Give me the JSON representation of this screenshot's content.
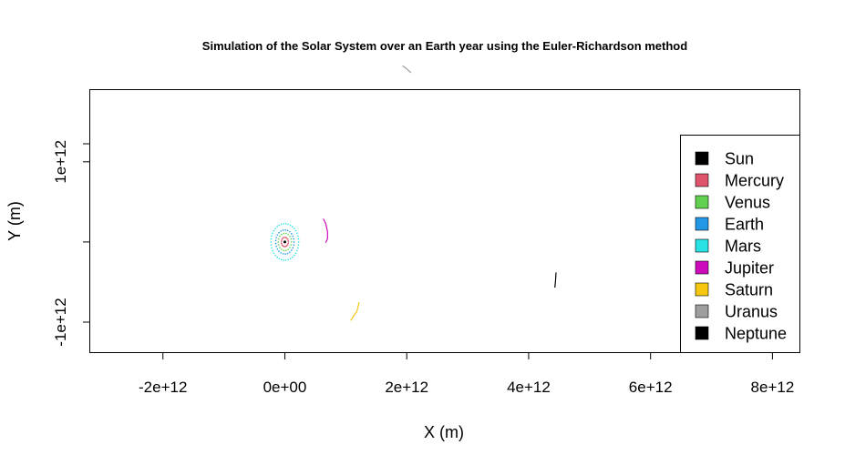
{
  "chart_data": {
    "type": "scatter",
    "title": "Simulation of the Solar System over an Earth year using the Euler-Richardson method",
    "xlabel": "X (m)",
    "ylabel": "Y (m)",
    "xlim": [
      -3200000000000.0,
      8450000000000.0
    ],
    "ylim": [
      -1380000000000.0,
      1900000000000.0
    ],
    "x_ticks": [
      -2000000000000.0,
      0,
      2000000000000.0,
      4000000000000.0,
      6000000000000.0,
      8000000000000.0
    ],
    "x_tick_labels": [
      "-2e+12",
      "0e+00",
      "2e+12",
      "4e+12",
      "6e+12",
      "8e+12"
    ],
    "y_ticks": [
      -1000000000000.0,
      0,
      1000000000000.0
    ],
    "y_tick_labels": [
      "-1e+12",
      "",
      "1e+12"
    ],
    "legend_placement": "right",
    "grid": false,
    "series": [
      {
        "name": "Sun",
        "color": "#000000",
        "kind": "point",
        "x": [
          0
        ],
        "y": [
          0
        ]
      },
      {
        "name": "Mercury",
        "color": "#DF536B",
        "kind": "orbit",
        "cx": 0,
        "cy": 0,
        "radius": 58000000000.0,
        "from_deg": 0,
        "to_deg": 360
      },
      {
        "name": "Venus",
        "color": "#61D04F",
        "kind": "orbit",
        "cx": 0,
        "cy": 0,
        "radius": 108000000000.0,
        "from_deg": 0,
        "to_deg": 360
      },
      {
        "name": "Earth",
        "color": "#2297E6",
        "kind": "orbit",
        "cx": 0,
        "cy": 0,
        "radius": 150000000000.0,
        "from_deg": 0,
        "to_deg": 360
      },
      {
        "name": "Mars",
        "color": "#28E2E5",
        "kind": "orbit",
        "cx": 0,
        "cy": 0,
        "radius": 228000000000.0,
        "from_deg": 0,
        "to_deg": 360
      },
      {
        "name": "Jupiter",
        "color": "#CD0BBC",
        "kind": "track",
        "x": [
          630000000000.0,
          670000000000.0,
          700000000000.0,
          700000000000.0,
          670000000000.0
        ],
        "y": [
          290000000000.0,
          230000000000.0,
          130000000000.0,
          40000000000.0,
          -10000000000.0
        ]
      },
      {
        "name": "Saturn",
        "color": "#F5C710",
        "kind": "track",
        "x": [
          1080000000000.0,
          1130000000000.0,
          1180000000000.0,
          1220000000000.0
        ],
        "y": [
          -980000000000.0,
          -920000000000.0,
          -870000000000.0,
          -750000000000.0
        ]
      },
      {
        "name": "Uranus",
        "color": "#9E9E9E",
        "kind": "track",
        "x": [
          1930000000000.0,
          2000000000000.0,
          2070000000000.0
        ],
        "y": [
          2200000000000.0,
          2160000000000.0,
          2110000000000.0
        ]
      },
      {
        "name": "Neptune",
        "color": "#000000",
        "kind": "track",
        "x": [
          4430000000000.0,
          4440000000000.0,
          4450000000000.0
        ],
        "y": [
          -570000000000.0,
          -490000000000.0,
          -380000000000.0
        ]
      }
    ]
  }
}
